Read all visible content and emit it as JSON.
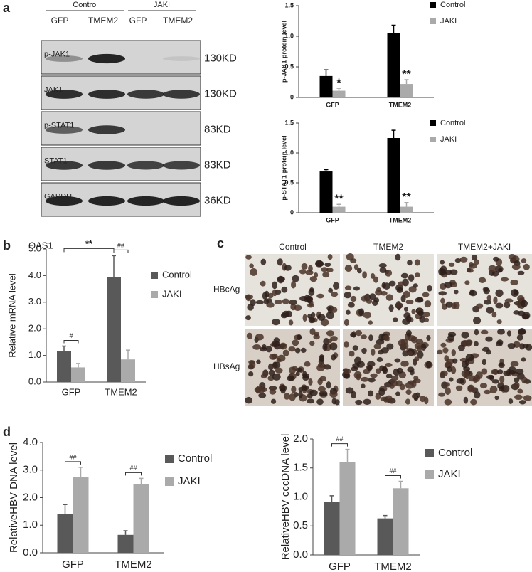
{
  "panel_labels": [
    "a",
    "b",
    "c",
    "d"
  ],
  "blot": {
    "groups": [
      "Control",
      "JAKI"
    ],
    "lanes": [
      "GFP",
      "TMEM2",
      "GFP",
      "TMEM2"
    ],
    "rows": [
      {
        "label": "p-JAK1",
        "size": "130KD"
      },
      {
        "label": "JAK1",
        "size": "130KD"
      },
      {
        "label": "p-STAT1",
        "size": "83KD"
      },
      {
        "label": "STAT1",
        "size": "83KD"
      },
      {
        "label": "GAPDH",
        "size": "36KD"
      }
    ]
  },
  "micrograph": {
    "columns": [
      "Control",
      "TMEM2",
      "TMEM2+JAKI"
    ],
    "rows": [
      "HBcAg",
      "HBsAg"
    ]
  },
  "chart_data": [
    {
      "type": "bar",
      "y_label": "p-JAK1 protein level",
      "categories": [
        "GFP",
        "TMEM2"
      ],
      "series": [
        {
          "name": "Control",
          "color": "#000000",
          "values": [
            0.35,
            1.05
          ],
          "errors": [
            0.1,
            0.13
          ]
        },
        {
          "name": "JAKI",
          "color": "#aaaaaa",
          "values": [
            0.11,
            0.22
          ],
          "errors": [
            0.04,
            0.07
          ]
        }
      ],
      "ylim": [
        0,
        1.5
      ],
      "yticks": [
        0,
        0.5,
        {
          "value": 1,
          "label": "1.0"
        },
        1.5
      ],
      "annotation_style": "star",
      "annotations": [
        {
          "text": "*",
          "x": "GFP"
        },
        {
          "text": "**",
          "x": "TMEM2"
        }
      ]
    },
    {
      "type": "bar",
      "y_label": "p-STAT1 protein level",
      "categories": [
        "GFP",
        "TMEM2"
      ],
      "series": [
        {
          "name": "Control",
          "color": "#000000",
          "values": [
            0.69,
            1.25
          ],
          "errors": [
            0.03,
            0.13
          ]
        },
        {
          "name": "JAKI",
          "color": "#aaaaaa",
          "values": [
            0.1,
            0.1
          ],
          "errors": [
            0.04,
            0.07
          ]
        }
      ],
      "ylim": [
        0,
        1.5
      ],
      "yticks": [
        0,
        0.5,
        {
          "value": 1,
          "label": "1.0"
        },
        1.5
      ],
      "annotation_style": "star",
      "annotations": [
        {
          "text": "**",
          "x": "GFP"
        },
        {
          "text": "**",
          "x": "TMEM2"
        }
      ]
    },
    {
      "type": "bar",
      "title": "OAS1",
      "y_label": "Relative mRNA level",
      "categories": [
        "GFP",
        "TMEM2"
      ],
      "series": [
        {
          "name": "Control",
          "color": "#595959",
          "values": [
            1.15,
            3.95
          ],
          "errors": [
            0.2,
            0.8
          ]
        },
        {
          "name": "JAKI",
          "color": "#aaaaaa",
          "values": [
            0.55,
            0.85
          ],
          "errors": [
            0.15,
            0.35
          ]
        }
      ],
      "ylim": [
        0,
        5
      ],
      "yticks": [
        {
          "value": 0,
          "label": "0.0"
        },
        {
          "value": 1,
          "label": "1.0"
        },
        {
          "value": 2,
          "label": "2.0"
        },
        {
          "value": 3,
          "label": "3.0"
        },
        {
          "value": 4,
          "label": "4.0"
        },
        {
          "value": 5,
          "label": "5.0"
        }
      ],
      "annotation_style": "bracket",
      "annotations": [
        {
          "text": "#",
          "x": "GFP"
        },
        {
          "text": "##",
          "x": "TMEM2"
        },
        {
          "text": "**",
          "x": [
            "GFP",
            "TMEM2"
          ]
        }
      ]
    },
    {
      "type": "bar",
      "y_label": "RelativeHBV DNA level",
      "categories": [
        "GFP",
        "TMEM2"
      ],
      "series": [
        {
          "name": "Control",
          "color": "#595959",
          "values": [
            1.4,
            0.65
          ],
          "errors": [
            0.35,
            0.15
          ]
        },
        {
          "name": "JAKI",
          "color": "#aaaaaa",
          "values": [
            2.75,
            2.5
          ],
          "errors": [
            0.35,
            0.2
          ]
        }
      ],
      "ylim": [
        0,
        4
      ],
      "yticks": [
        {
          "value": 0,
          "label": "0.0"
        },
        {
          "value": 1,
          "label": "1.0"
        },
        {
          "value": 2,
          "label": "2.0"
        },
        {
          "value": 3,
          "label": "3.0"
        },
        {
          "value": 4,
          "label": "4.0"
        }
      ],
      "annotation_style": "bracket",
      "annotations": [
        {
          "text": "##",
          "x": "GFP"
        },
        {
          "text": "##",
          "x": "TMEM2"
        }
      ]
    },
    {
      "type": "bar",
      "y_label": "RelativeHBV cccDNA level",
      "categories": [
        "GFP",
        "TMEM2"
      ],
      "series": [
        {
          "name": "Control",
          "color": "#595959",
          "values": [
            0.92,
            0.63
          ],
          "errors": [
            0.1,
            0.05
          ]
        },
        {
          "name": "JAKI",
          "color": "#aaaaaa",
          "values": [
            1.6,
            1.15
          ],
          "errors": [
            0.22,
            0.12
          ]
        }
      ],
      "ylim": [
        0,
        2
      ],
      "yticks": [
        {
          "value": 0,
          "label": "0.0"
        },
        0.5,
        {
          "value": 1,
          "label": "1.0"
        },
        1.5,
        {
          "value": 2,
          "label": "2.0"
        }
      ],
      "annotation_style": "bracket",
      "annotations": [
        {
          "text": "##",
          "x": "GFP"
        },
        {
          "text": "##",
          "x": "TMEM2"
        }
      ]
    }
  ]
}
